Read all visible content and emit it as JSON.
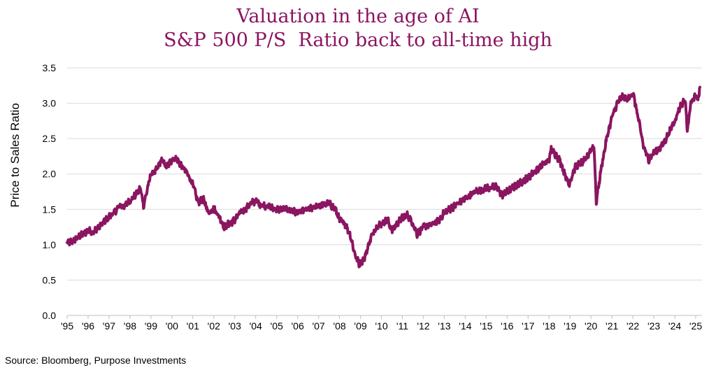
{
  "title_lines": [
    "Valuation in the age of AI",
    "S&P 500 P/S  Ratio back to all-time high"
  ],
  "source": "Source: Bloomberg, Purpose Investments",
  "colors": {
    "title": "#8a1560",
    "line": "#8a1560",
    "grid": "#d9d9d9",
    "axis": "#bfbfbf",
    "text": "#000000"
  },
  "chart_data": {
    "type": "line",
    "title": "Valuation in the age of AI / S&P 500 P/S  Ratio back to all-time high",
    "xlabel": "",
    "ylabel": "Price to Sales Ratio",
    "ylim": [
      0,
      3.5
    ],
    "yticks": [
      0.0,
      0.5,
      1.0,
      1.5,
      2.0,
      2.5,
      3.0,
      3.5
    ],
    "ytick_labels": [
      "0.0",
      "0.5",
      "1.0",
      "1.5",
      "2.0",
      "2.5",
      "3.0",
      "3.5"
    ],
    "xlim": [
      1995,
      2025.3
    ],
    "xticks": [
      1995,
      1996,
      1997,
      1998,
      1999,
      2000,
      2001,
      2002,
      2003,
      2004,
      2005,
      2006,
      2007,
      2008,
      2009,
      2010,
      2011,
      2012,
      2013,
      2014,
      2015,
      2016,
      2017,
      2018,
      2019,
      2020,
      2021,
      2022,
      2023,
      2024,
      2025
    ],
    "xtick_labels": [
      "'95",
      "'96",
      "'97",
      "'98",
      "'99",
      "'00",
      "'01",
      "'02",
      "'03",
      "'04",
      "'05",
      "'06",
      "'07",
      "'08",
      "'09",
      "'10",
      "'11",
      "'12",
      "'13",
      "'14",
      "'15",
      "'16",
      "'17",
      "'18",
      "'19",
      "'20",
      "'21",
      "'22",
      "'23",
      "'24",
      "'25"
    ],
    "grid": true,
    "legend": "none",
    "series": [
      {
        "name": "S&P 500 P/S Ratio",
        "x": [
          1995.0,
          1995.25,
          1995.5,
          1995.75,
          1996.0,
          1996.25,
          1996.5,
          1996.75,
          1997.0,
          1997.25,
          1997.5,
          1997.75,
          1998.0,
          1998.25,
          1998.5,
          1998.65,
          1998.8,
          1999.0,
          1999.25,
          1999.5,
          1999.75,
          2000.0,
          2000.2,
          2000.5,
          2000.75,
          2001.0,
          2001.25,
          2001.5,
          2001.75,
          2002.0,
          2002.25,
          2002.5,
          2002.75,
          2003.0,
          2003.25,
          2003.5,
          2003.75,
          2004.0,
          2004.25,
          2004.5,
          2004.75,
          2005.0,
          2005.5,
          2006.0,
          2006.5,
          2007.0,
          2007.5,
          2007.8,
          2008.0,
          2008.25,
          2008.5,
          2008.75,
          2008.95,
          2009.2,
          2009.5,
          2009.75,
          2010.0,
          2010.3,
          2010.5,
          2010.75,
          2011.0,
          2011.25,
          2011.5,
          2011.7,
          2012.0,
          2012.5,
          2012.75,
          2013.0,
          2013.5,
          2014.0,
          2014.5,
          2015.0,
          2015.5,
          2015.75,
          2016.0,
          2016.5,
          2017.0,
          2017.5,
          2018.0,
          2018.1,
          2018.5,
          2018.75,
          2018.95,
          2019.25,
          2019.5,
          2019.75,
          2020.0,
          2020.15,
          2020.25,
          2020.5,
          2020.75,
          2021.0,
          2021.25,
          2021.5,
          2021.75,
          2022.0,
          2022.25,
          2022.5,
          2022.75,
          2023.0,
          2023.25,
          2023.5,
          2023.75,
          2024.0,
          2024.25,
          2024.5,
          2024.6,
          2024.75,
          2025.0,
          2025.1,
          2025.2
        ],
        "values": [
          1.02,
          1.05,
          1.1,
          1.15,
          1.2,
          1.18,
          1.25,
          1.32,
          1.4,
          1.45,
          1.55,
          1.55,
          1.62,
          1.7,
          1.8,
          1.55,
          1.75,
          2.0,
          2.05,
          2.2,
          2.1,
          2.2,
          2.22,
          2.1,
          2.0,
          1.85,
          1.6,
          1.65,
          1.45,
          1.52,
          1.4,
          1.25,
          1.3,
          1.35,
          1.45,
          1.5,
          1.58,
          1.62,
          1.56,
          1.55,
          1.52,
          1.5,
          1.5,
          1.45,
          1.5,
          1.55,
          1.58,
          1.5,
          1.35,
          1.3,
          1.15,
          0.85,
          0.72,
          0.82,
          1.1,
          1.25,
          1.3,
          1.35,
          1.2,
          1.3,
          1.38,
          1.42,
          1.3,
          1.15,
          1.25,
          1.3,
          1.35,
          1.45,
          1.55,
          1.65,
          1.75,
          1.8,
          1.82,
          1.7,
          1.75,
          1.85,
          1.95,
          2.08,
          2.2,
          2.35,
          2.2,
          2.0,
          1.85,
          2.1,
          2.15,
          2.2,
          2.35,
          2.4,
          1.6,
          2.1,
          2.5,
          2.8,
          3.0,
          3.1,
          3.05,
          3.15,
          2.8,
          2.4,
          2.2,
          2.3,
          2.35,
          2.45,
          2.6,
          2.75,
          2.95,
          3.05,
          2.6,
          3.0,
          3.1,
          3.05,
          3.2
        ]
      }
    ]
  }
}
